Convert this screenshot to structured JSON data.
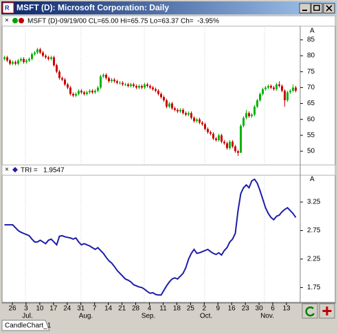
{
  "window": {
    "title": "MSFT (D): Microsoft Corporation: Daily"
  },
  "chart_data": [
    {
      "type": "candlestick",
      "header": "MSFT (D)-09/19/00 CL=65.00 Hi=65.75 Lo=63.37 Ch=  -3.95%",
      "axis_marker": "A",
      "up_color": "#00b400",
      "down_color": "#cc0000",
      "ylim": [
        45.7,
        89.3
      ],
      "yticks": [
        50,
        55,
        60,
        65,
        70,
        75,
        80,
        85
      ],
      "values": [
        [
          79,
          80,
          78.5,
          79.5
        ],
        [
          79.5,
          80,
          78,
          78.5
        ],
        [
          78.5,
          79,
          77,
          77.5
        ],
        [
          77.5,
          78.5,
          77,
          78
        ],
        [
          78,
          78.5,
          77,
          77.5
        ],
        [
          77.5,
          79,
          77,
          78.5
        ],
        [
          78.5,
          79.5,
          78,
          79
        ],
        [
          79,
          79.5,
          77.5,
          78
        ],
        [
          78,
          79,
          77.5,
          78.5
        ],
        [
          78.5,
          79.5,
          78,
          79
        ],
        [
          79,
          81,
          78.5,
          80.5
        ],
        [
          80.5,
          81.5,
          80,
          81
        ],
        [
          81,
          82.5,
          80.5,
          82
        ],
        [
          82,
          82.5,
          80.5,
          81
        ],
        [
          81,
          81.5,
          79.5,
          80
        ],
        [
          80,
          80.5,
          79,
          79.5
        ],
        [
          79.5,
          80,
          78.5,
          79
        ],
        [
          79,
          80,
          78.5,
          79.5
        ],
        [
          79.5,
          80,
          76.5,
          77
        ],
        [
          77,
          77.5,
          74.5,
          75
        ],
        [
          75,
          75.5,
          72.5,
          73
        ],
        [
          73,
          73.5,
          72,
          72.5
        ],
        [
          72.5,
          73,
          70.5,
          71
        ],
        [
          71,
          71.5,
          69.5,
          70
        ],
        [
          70,
          70.5,
          67.5,
          68
        ],
        [
          68,
          68.5,
          67,
          67.5
        ],
        [
          67.5,
          68.5,
          67,
          68
        ],
        [
          68,
          69.5,
          67.5,
          69
        ],
        [
          69,
          69.5,
          68,
          68.5
        ],
        [
          68.5,
          69,
          67.5,
          68
        ],
        [
          68,
          69,
          67.5,
          68.5
        ],
        [
          68.5,
          69.5,
          68,
          69
        ],
        [
          69,
          69.5,
          68,
          68.5
        ],
        [
          68.5,
          69.5,
          68,
          69
        ],
        [
          69,
          70.5,
          68.5,
          70
        ],
        [
          70,
          74,
          69.5,
          73.5
        ],
        [
          73.5,
          74.5,
          73,
          74
        ],
        [
          74,
          74.5,
          72.5,
          73
        ],
        [
          73,
          73.5,
          71.5,
          72
        ],
        [
          72,
          73,
          71.5,
          72.5
        ],
        [
          72.5,
          73,
          71.5,
          72
        ],
        [
          72,
          72.5,
          71,
          71.5
        ],
        [
          71.5,
          72,
          71,
          71.5
        ],
        [
          71.5,
          72,
          70.5,
          71
        ],
        [
          71,
          71.5,
          70.5,
          71
        ],
        [
          71,
          71.5,
          70,
          70.5
        ],
        [
          70.5,
          71.5,
          70,
          71
        ],
        [
          71,
          71.5,
          70,
          70.5
        ],
        [
          70.5,
          71,
          69.5,
          70
        ],
        [
          70,
          71,
          69.5,
          70.5
        ],
        [
          70.5,
          71,
          69.5,
          70
        ],
        [
          70,
          71.5,
          69.5,
          71
        ],
        [
          71,
          71.5,
          70,
          70.5
        ],
        [
          70.5,
          71,
          69.5,
          70
        ],
        [
          70,
          70.5,
          69,
          69.5
        ],
        [
          69.5,
          70,
          68.5,
          69
        ],
        [
          69,
          69.5,
          67.5,
          68
        ],
        [
          68,
          68.5,
          66.5,
          67
        ],
        [
          67,
          67.5,
          65.5,
          66
        ],
        [
          66,
          66.5,
          63.5,
          64
        ],
        [
          64,
          65.5,
          63.5,
          65
        ],
        [
          65,
          65.5,
          63,
          63.5
        ],
        [
          63.5,
          64,
          62.5,
          63
        ],
        [
          63,
          63.5,
          62,
          62.5
        ],
        [
          62.5,
          63.5,
          62,
          63
        ],
        [
          63,
          63.5,
          61.5,
          62
        ],
        [
          62,
          62.5,
          61,
          61.5
        ],
        [
          61.5,
          62.5,
          61,
          62
        ],
        [
          62,
          62.5,
          60,
          60.5
        ],
        [
          60.5,
          61,
          59,
          59.5
        ],
        [
          59.5,
          60.5,
          59,
          60
        ],
        [
          60,
          60.5,
          58.5,
          59
        ],
        [
          59,
          59.5,
          58,
          58.5
        ],
        [
          58.5,
          59,
          56.5,
          57
        ],
        [
          57,
          57.5,
          55.5,
          56
        ],
        [
          56,
          56.5,
          55,
          55.5
        ],
        [
          55.5,
          56,
          53.5,
          54
        ],
        [
          54,
          54.5,
          53,
          53.5
        ],
        [
          53.5,
          55.5,
          53,
          55
        ],
        [
          55,
          55.5,
          52.5,
          53
        ],
        [
          53,
          53.5,
          52,
          52.5
        ],
        [
          52.5,
          53,
          50.5,
          51
        ],
        [
          51,
          53.5,
          50.5,
          53
        ],
        [
          53,
          53.5,
          51,
          51.5
        ],
        [
          51.5,
          52,
          49.5,
          50
        ],
        [
          50,
          50.5,
          48.5,
          49.5
        ],
        [
          49.5,
          58.5,
          49.5,
          58
        ],
        [
          58,
          61,
          57.5,
          60.5
        ],
        [
          60.5,
          63,
          60,
          62
        ],
        [
          62,
          62.5,
          60.5,
          61
        ],
        [
          61,
          62,
          60.5,
          61.5
        ],
        [
          61.5,
          64.5,
          61,
          64
        ],
        [
          64,
          66.5,
          63.5,
          66
        ],
        [
          66,
          68.5,
          65.5,
          68
        ],
        [
          68,
          70,
          67.5,
          69.5
        ],
        [
          69.5,
          70.5,
          69,
          70
        ],
        [
          70,
          71,
          69.5,
          70.5
        ],
        [
          70.5,
          71,
          69.5,
          70
        ],
        [
          70,
          70.5,
          69,
          69.5
        ],
        [
          69.5,
          71.5,
          69,
          71
        ],
        [
          71,
          72,
          70,
          70.5
        ],
        [
          70.5,
          71,
          68.5,
          69
        ],
        [
          69,
          69.5,
          64,
          66
        ],
        [
          66,
          69,
          65.5,
          68.5
        ],
        [
          68.5,
          69.5,
          68,
          69
        ],
        [
          69,
          71,
          68.5,
          70
        ],
        [
          70,
          70.5,
          68.5,
          69
        ]
      ]
    },
    {
      "type": "line",
      "header": "TRI =   1.9547",
      "axis_marker": "A",
      "color": "#1c1ca8",
      "ylim": [
        1.49,
        3.72
      ],
      "yticks": [
        1.75,
        2.25,
        2.75,
        3.25
      ],
      "values": [
        2.85,
        2.85,
        2.85,
        2.85,
        2.8,
        2.75,
        2.72,
        2.7,
        2.68,
        2.66,
        2.6,
        2.55,
        2.55,
        2.58,
        2.55,
        2.52,
        2.58,
        2.6,
        2.55,
        2.5,
        2.65,
        2.66,
        2.64,
        2.63,
        2.62,
        2.6,
        2.62,
        2.55,
        2.5,
        2.52,
        2.5,
        2.48,
        2.45,
        2.42,
        2.45,
        2.4,
        2.35,
        2.28,
        2.22,
        2.18,
        2.12,
        2.05,
        2.0,
        1.95,
        1.9,
        1.88,
        1.85,
        1.8,
        1.78,
        1.76,
        1.75,
        1.72,
        1.68,
        1.65,
        1.66,
        1.63,
        1.62,
        1.62,
        1.7,
        1.78,
        1.85,
        1.9,
        1.92,
        1.9,
        1.95,
        2.0,
        2.1,
        2.25,
        2.35,
        2.42,
        2.35,
        2.36,
        2.38,
        2.4,
        2.42,
        2.38,
        2.35,
        2.33,
        2.36,
        2.32,
        2.4,
        2.45,
        2.55,
        2.6,
        2.7,
        3.1,
        3.4,
        3.5,
        3.55,
        3.5,
        3.62,
        3.65,
        3.58,
        3.45,
        3.3,
        3.15,
        3.05,
        2.98,
        2.94,
        3.0,
        3.02,
        3.08,
        3.12,
        3.15,
        3.1,
        3.05,
        2.98
      ]
    }
  ],
  "x_axis": {
    "days": [
      "26",
      "3",
      "10",
      "17",
      "24",
      "31",
      "7",
      "14",
      "21",
      "28",
      "4",
      "11",
      "18",
      "25",
      "2",
      "9",
      "16",
      "23",
      "30",
      "6",
      "13"
    ],
    "months": [
      "Jul.",
      "Aug.",
      "Sep.",
      "Oct.",
      "Nov."
    ]
  },
  "tab": "CandleChart_1"
}
